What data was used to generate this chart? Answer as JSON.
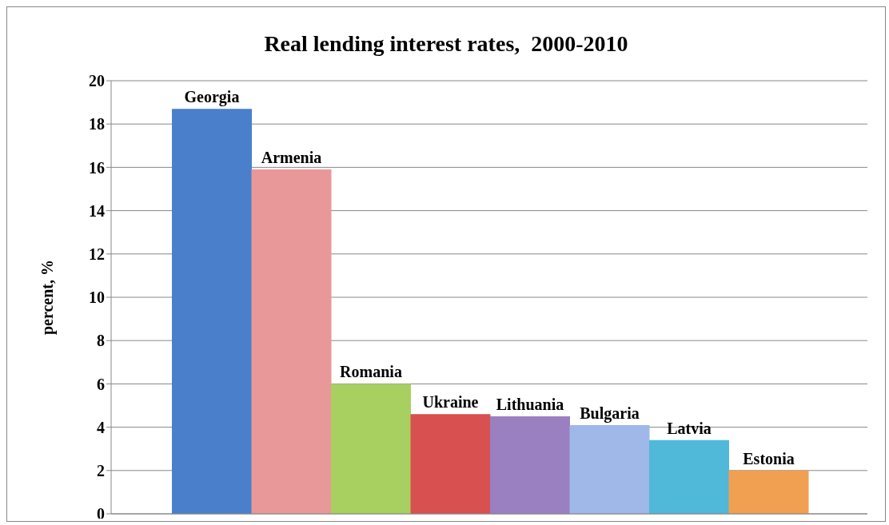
{
  "chart_data": {
    "type": "bar",
    "title": "Real lending interest rates,  2000-2010",
    "ylabel": "percent, %",
    "categories": [
      "Georgia",
      "Armenia",
      "Romania",
      "Ukraine",
      "Lithuania",
      "Bulgaria",
      "Latvia",
      "Estonia"
    ],
    "values": [
      18.7,
      15.9,
      6.0,
      4.6,
      4.5,
      4.1,
      3.4,
      2.0
    ],
    "colors": [
      "#4a7fcc",
      "#e89898",
      "#a8d060",
      "#d85050",
      "#9a80c0",
      "#a0b8e8",
      "#50b8d8",
      "#f0a050"
    ],
    "ylim": [
      0,
      20
    ],
    "yticks": [
      0,
      2,
      4,
      6,
      8,
      10,
      12,
      14,
      16,
      18,
      20
    ],
    "grid": "y"
  }
}
